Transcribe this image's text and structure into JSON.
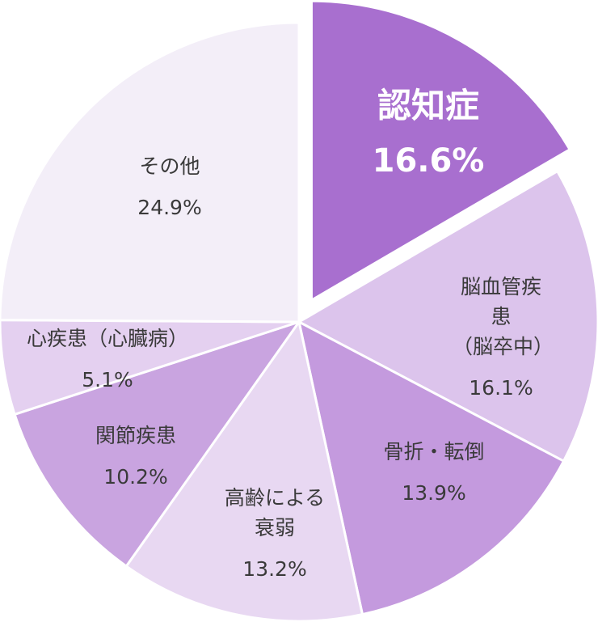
{
  "chart_data": {
    "type": "pie",
    "categories": [
      "認知症",
      "脳血管疾患\n（脳卒中）",
      "骨折・転倒",
      "高齢による\n衰弱",
      "関節疾患",
      "心疾患（心臓病）",
      "その他"
    ],
    "values": [
      16.6,
      16.1,
      13.9,
      13.2,
      10.2,
      5.1,
      24.9
    ],
    "value_labels": [
      "16.6%",
      "16.1%",
      "13.9%",
      "13.2%",
      "10.2%",
      "5.1%",
      "24.9%"
    ],
    "colors": [
      "#a86fcf",
      "#dcc4ec",
      "#c49ade",
      "#e8d8f2",
      "#c9a4e0",
      "#e4d0f0",
      "#f3eef8"
    ]
  }
}
